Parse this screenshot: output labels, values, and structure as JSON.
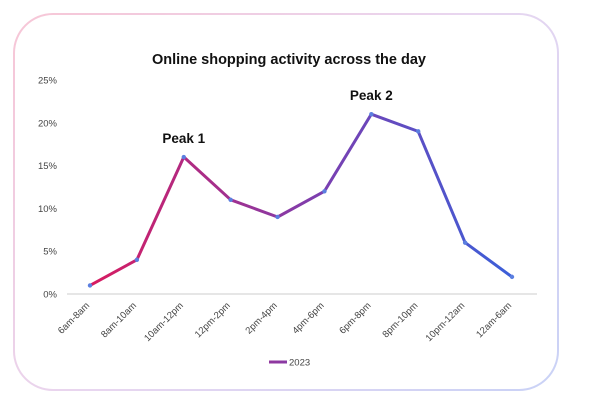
{
  "chart_data": {
    "type": "line",
    "title": "Online shopping activity across the day",
    "categories": [
      "6am-8am",
      "8am-10am",
      "10am-12pm",
      "12pm-2pm",
      "2pm-4pm",
      "4pm-6pm",
      "6pm-8pm",
      "8pm-10pm",
      "10pm-12am",
      "12am-6am"
    ],
    "series": [
      {
        "name": "2023",
        "values": [
          1,
          4,
          16,
          11,
          9,
          12,
          21,
          19,
          6,
          2
        ]
      }
    ],
    "ylim": [
      0,
      25
    ],
    "yticks": [
      0,
      5,
      10,
      15,
      20,
      25
    ],
    "ytick_format": "percent",
    "annotations": [
      {
        "text": "Peak 1",
        "category": "10am-12pm",
        "value": 16
      },
      {
        "text": "Peak 2",
        "category": "6pm-8pm",
        "value": 21
      }
    ],
    "grid": false,
    "legend": "bottom-center",
    "colors": {
      "start": "#d81b60",
      "mid": "#7b3fb0",
      "end": "#3b5fd9",
      "marker": "#5b7fe0",
      "axis": "#cccccc"
    }
  }
}
